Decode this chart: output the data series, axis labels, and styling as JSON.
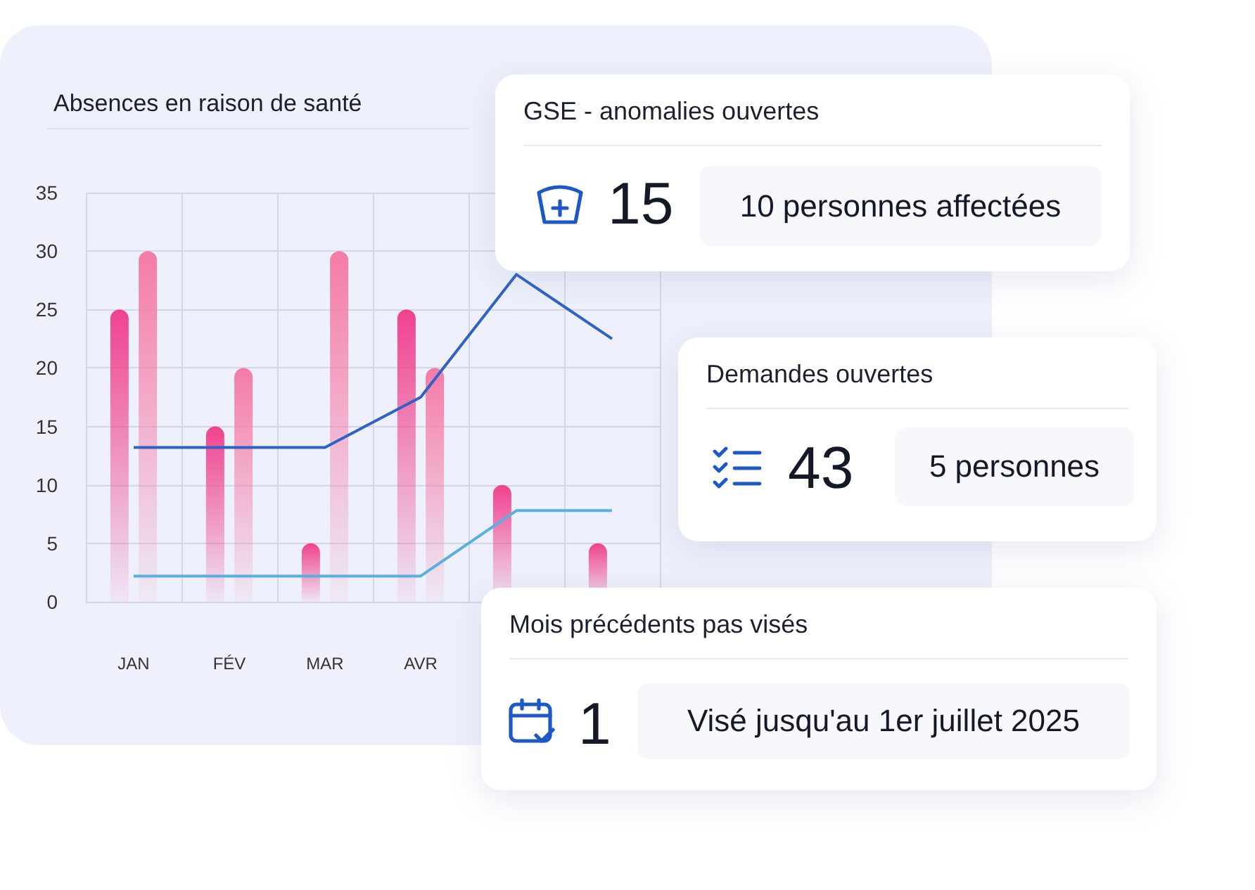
{
  "chart_data": [
    {
      "type": "bar",
      "title": "Absences en raison de santé",
      "categories": [
        "JAN",
        "FÉV",
        "MAR",
        "AVR",
        null,
        null
      ],
      "series": [
        {
          "color": "#f0428f",
          "values": [
            25,
            15,
            5,
            25,
            10,
            5
          ]
        },
        {
          "color": "#f57ba7",
          "values": [
            30,
            20,
            30,
            20,
            null,
            null
          ]
        },
        {
          "type": "line",
          "color": "#2f62c4",
          "values": [
            13.2,
            13.2,
            13.2,
            17.5,
            28,
            22.5
          ]
        },
        {
          "type": "line",
          "color": "#5aaee0",
          "values": [
            2.2,
            2.2,
            2.2,
            2.2,
            7.8,
            7.8
          ]
        }
      ],
      "ylim": [
        0,
        35
      ],
      "yticks": [
        0,
        5,
        10,
        15,
        20,
        25,
        30,
        35
      ],
      "grid": true
    },
    {
      "type": "other",
      "title": "GSE - anomalies ouvertes",
      "annotations": [
        "15",
        "10 personnes affectées"
      ]
    },
    {
      "type": "other",
      "title": "Demandes ouvertes",
      "annotations": [
        "43",
        "5 personnes"
      ]
    },
    {
      "type": "other",
      "title": "Mois précédents pas visés",
      "annotations": [
        "1",
        "Visé jusqu'au 1er juillet 2025"
      ]
    }
  ]
}
